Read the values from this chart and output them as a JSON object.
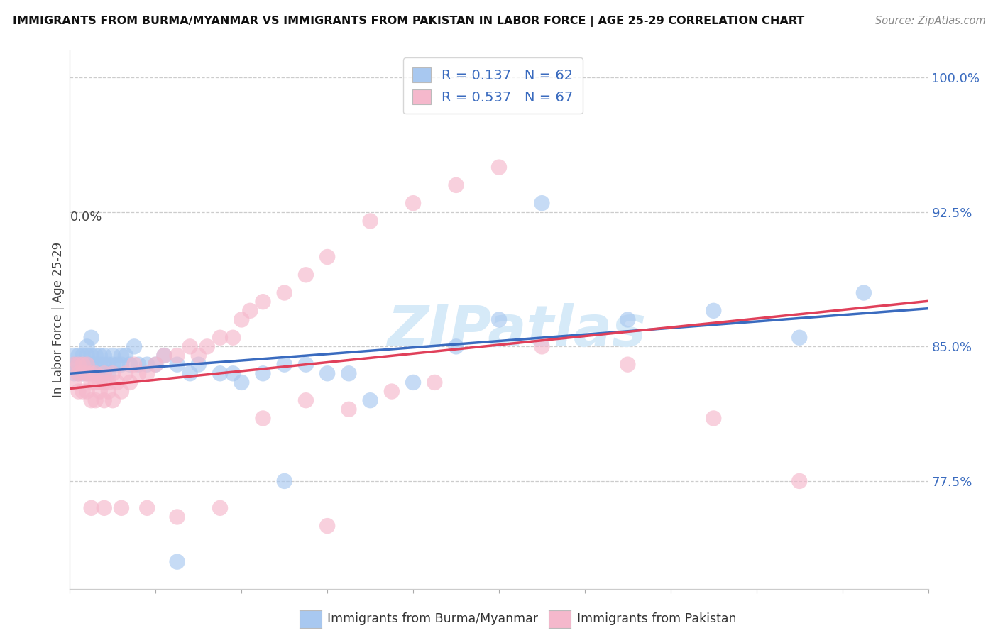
{
  "title": "IMMIGRANTS FROM BURMA/MYANMAR VS IMMIGRANTS FROM PAKISTAN IN LABOR FORCE | AGE 25-29 CORRELATION CHART",
  "source": "Source: ZipAtlas.com",
  "ylabel": "In Labor Force | Age 25-29",
  "yticks_labels": [
    "77.5%",
    "85.0%",
    "92.5%",
    "100.0%"
  ],
  "ytick_values": [
    0.775,
    0.85,
    0.925,
    1.0
  ],
  "xlim": [
    0.0,
    0.2
  ],
  "ylim": [
    0.715,
    1.015
  ],
  "legend1_label": "Immigrants from Burma/Myanmar",
  "legend2_label": "Immigrants from Pakistan",
  "R_burma": 0.137,
  "N_burma": 62,
  "R_pak": 0.537,
  "N_pak": 67,
  "color_burma": "#a8c8f0",
  "color_pak": "#f5b8cc",
  "line_color_burma": "#3a6bbf",
  "line_color_pak": "#e0405a",
  "text_color_blue": "#3a6bbf",
  "watermark_color": "#d6eaf8",
  "background": "#ffffff",
  "burma_x": [
    0.001,
    0.001,
    0.001,
    0.002,
    0.002,
    0.002,
    0.003,
    0.003,
    0.003,
    0.004,
    0.004,
    0.004,
    0.004,
    0.005,
    0.005,
    0.005,
    0.005,
    0.006,
    0.006,
    0.006,
    0.007,
    0.007,
    0.007,
    0.008,
    0.008,
    0.008,
    0.009,
    0.009,
    0.01,
    0.01,
    0.011,
    0.012,
    0.012,
    0.013,
    0.014,
    0.015,
    0.016,
    0.018,
    0.02,
    0.022,
    0.025,
    0.028,
    0.03,
    0.035,
    0.038,
    0.04,
    0.045,
    0.05,
    0.055,
    0.06,
    0.065,
    0.07,
    0.08,
    0.09,
    0.1,
    0.11,
    0.13,
    0.15,
    0.17,
    0.185,
    0.05,
    0.025
  ],
  "burma_y": [
    0.84,
    0.845,
    0.835,
    0.84,
    0.845,
    0.835,
    0.845,
    0.835,
    0.84,
    0.84,
    0.845,
    0.835,
    0.85,
    0.84,
    0.845,
    0.835,
    0.855,
    0.84,
    0.845,
    0.835,
    0.84,
    0.845,
    0.835,
    0.84,
    0.845,
    0.835,
    0.84,
    0.835,
    0.84,
    0.845,
    0.84,
    0.84,
    0.845,
    0.845,
    0.84,
    0.85,
    0.84,
    0.84,
    0.84,
    0.845,
    0.84,
    0.835,
    0.84,
    0.835,
    0.835,
    0.83,
    0.835,
    0.84,
    0.84,
    0.835,
    0.835,
    0.82,
    0.83,
    0.85,
    0.865,
    0.93,
    0.865,
    0.87,
    0.855,
    0.88,
    0.775,
    0.73
  ],
  "pak_x": [
    0.001,
    0.001,
    0.002,
    0.002,
    0.002,
    0.003,
    0.003,
    0.003,
    0.004,
    0.004,
    0.004,
    0.005,
    0.005,
    0.005,
    0.006,
    0.006,
    0.006,
    0.007,
    0.007,
    0.008,
    0.008,
    0.008,
    0.009,
    0.009,
    0.01,
    0.01,
    0.011,
    0.012,
    0.013,
    0.014,
    0.015,
    0.016,
    0.018,
    0.02,
    0.022,
    0.025,
    0.028,
    0.03,
    0.032,
    0.035,
    0.038,
    0.04,
    0.042,
    0.045,
    0.05,
    0.055,
    0.06,
    0.07,
    0.08,
    0.09,
    0.1,
    0.045,
    0.055,
    0.065,
    0.075,
    0.085,
    0.11,
    0.13,
    0.15,
    0.17,
    0.005,
    0.008,
    0.012,
    0.018,
    0.025,
    0.035,
    0.06
  ],
  "pak_y": [
    0.84,
    0.83,
    0.835,
    0.84,
    0.825,
    0.835,
    0.84,
    0.825,
    0.835,
    0.84,
    0.825,
    0.83,
    0.835,
    0.82,
    0.83,
    0.835,
    0.82,
    0.83,
    0.825,
    0.83,
    0.835,
    0.82,
    0.825,
    0.83,
    0.835,
    0.82,
    0.83,
    0.825,
    0.835,
    0.83,
    0.84,
    0.835,
    0.835,
    0.84,
    0.845,
    0.845,
    0.85,
    0.845,
    0.85,
    0.855,
    0.855,
    0.865,
    0.87,
    0.875,
    0.88,
    0.89,
    0.9,
    0.92,
    0.93,
    0.94,
    0.95,
    0.81,
    0.82,
    0.815,
    0.825,
    0.83,
    0.85,
    0.84,
    0.81,
    0.775,
    0.76,
    0.76,
    0.76,
    0.76,
    0.755,
    0.76,
    0.75
  ]
}
